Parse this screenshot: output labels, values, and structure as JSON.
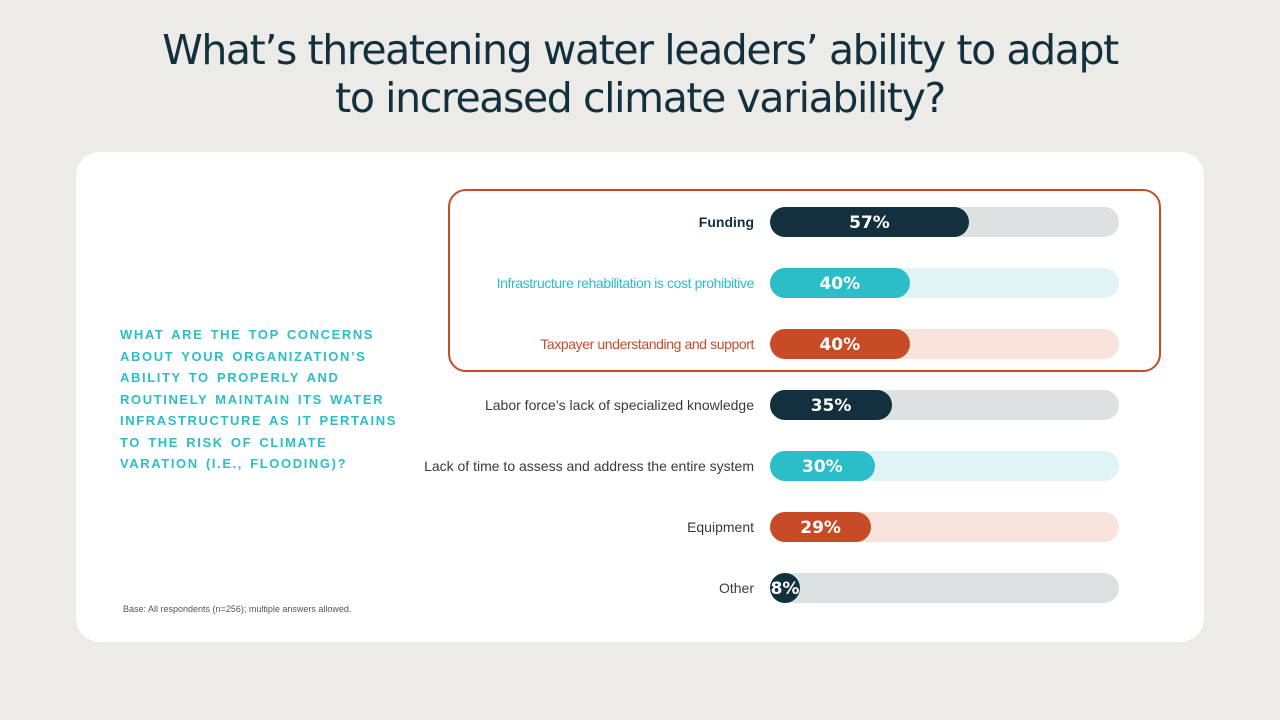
{
  "title": {
    "line1": "What’s threatening water leaders’ ability to adapt",
    "line2": "to increased climate variability?"
  },
  "question": "What are the top concerns about your organization’s ability to properly and routinely maintain its water infrastructure as it pertains to the risk of climate varation (i.e., flooding)?",
  "base_note": "Base: All respondents (n=256); multiple answers allowed.",
  "colors": {
    "dark": "#12303d",
    "teal": "#2bbdc8",
    "orange": "#c84b28",
    "dark_track": "#dde1e2",
    "teal_track": "#e0f3f5",
    "orange_track": "#f9e3dd",
    "highlight_border": "#c84b28"
  },
  "chart_data": {
    "type": "bar",
    "orientation": "horizontal",
    "xlim": [
      0,
      100
    ],
    "categories": [
      "Funding",
      "Infrastructure rehabilitation is cost prohibitive",
      "Taxpayer understanding and support",
      "Labor force’s lack of specialized knowledge",
      "Lack of time to assess and address the entire system",
      "Equipment",
      "Other"
    ],
    "values": [
      57,
      40,
      40,
      35,
      30,
      29,
      8
    ],
    "value_labels": [
      "57%",
      "40%",
      "40%",
      "35%",
      "30%",
      "29%",
      "8%"
    ],
    "bar_colors": [
      "dark",
      "teal",
      "orange",
      "dark",
      "teal",
      "orange",
      "dark"
    ],
    "highlighted_categories": [
      "Funding",
      "Infrastructure rehabilitation is cost prohibitive",
      "Taxpayer understanding and support"
    ]
  }
}
